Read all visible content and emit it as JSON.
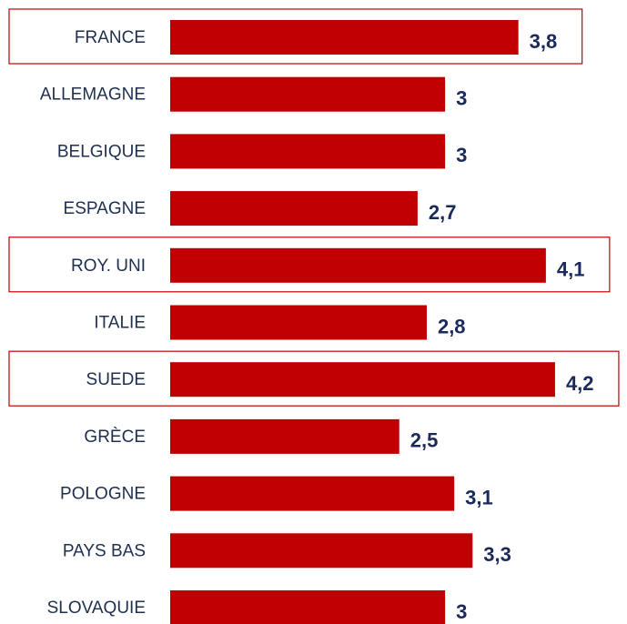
{
  "chart_data": {
    "type": "bar",
    "orientation": "horizontal",
    "categories": [
      "FRANCE",
      "ALLEMAGNE",
      "BELGIQUE",
      "ESPAGNE",
      "ROY. UNI",
      "ITALIE",
      "SUEDE",
      "GRÈCE",
      "POLOGNE",
      "PAYS BAS",
      "SLOVAQUIE"
    ],
    "values": [
      3.8,
      3,
      3,
      2.7,
      4.1,
      2.8,
      4.2,
      2.5,
      3.1,
      3.3,
      3
    ],
    "value_labels": [
      "3,8",
      "3",
      "3",
      "2,7",
      "4,1",
      "2,8",
      "4,2",
      "2,5",
      "3,1",
      "3,3",
      "3"
    ],
    "highlight": [
      true,
      false,
      false,
      false,
      true,
      false,
      true,
      false,
      false,
      false,
      false
    ],
    "color": "#c00000"
  }
}
